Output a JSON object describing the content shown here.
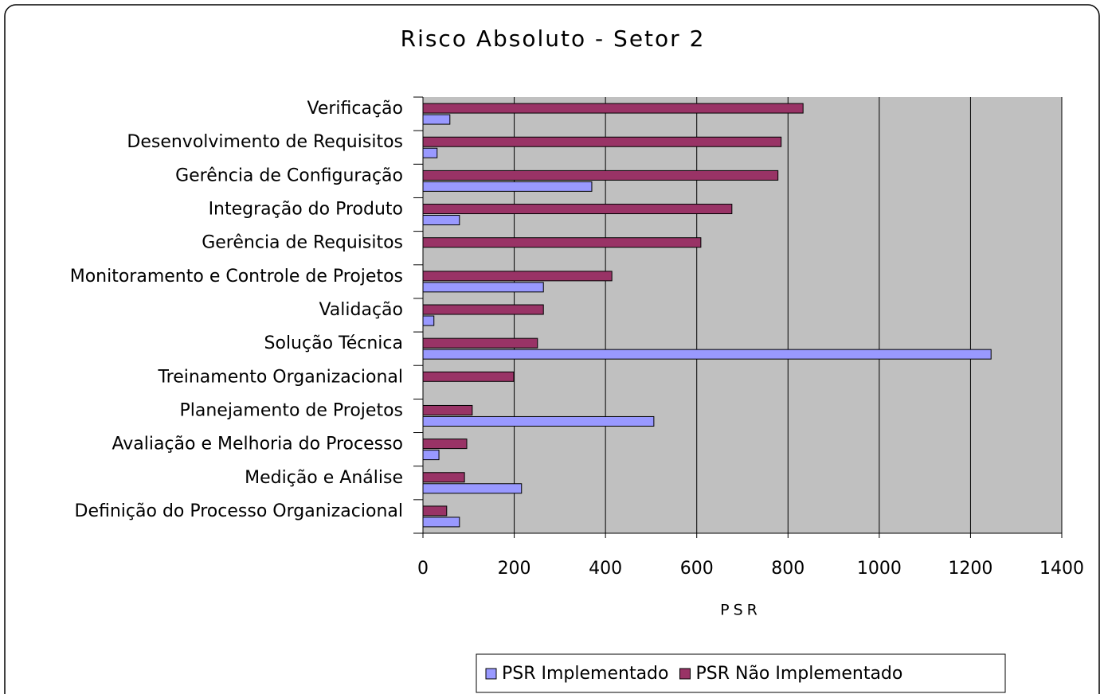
{
  "chart_data": {
    "type": "hbar",
    "title": "Risco Absoluto - Setor 2",
    "x_label": "PSR",
    "categories": [
      "Verificação",
      "Desenvolvimento de Requisitos",
      "Gerência de Configuração",
      "Integração do Produto",
      "Gerência de Requisitos",
      "Monitoramento e Controle de Projetos",
      "Validação",
      "Solução Técnica",
      "Treinamento Organizacional",
      "Planejamento de Projetos",
      "Avaliação e Melhoria do Processo",
      "Medição e Análise",
      "Definição do Processo Organizacional"
    ],
    "series": [
      {
        "name": "PSR Implementado",
        "color": "#9999ff",
        "values": [
          59,
          31,
          370,
          80,
          0,
          264,
          24,
          1245,
          0,
          506,
          35,
          216,
          80
        ]
      },
      {
        "name": "PSR Não Implementado",
        "color": "#993366",
        "values": [
          833,
          785,
          778,
          677,
          609,
          414,
          264,
          251,
          199,
          108,
          96,
          91,
          52
        ]
      }
    ],
    "xlim": [
      0,
      1400
    ],
    "xticks": [
      0,
      200,
      400,
      600,
      800,
      1000,
      1200,
      1400
    ],
    "grid": true,
    "legend": "bottom"
  }
}
